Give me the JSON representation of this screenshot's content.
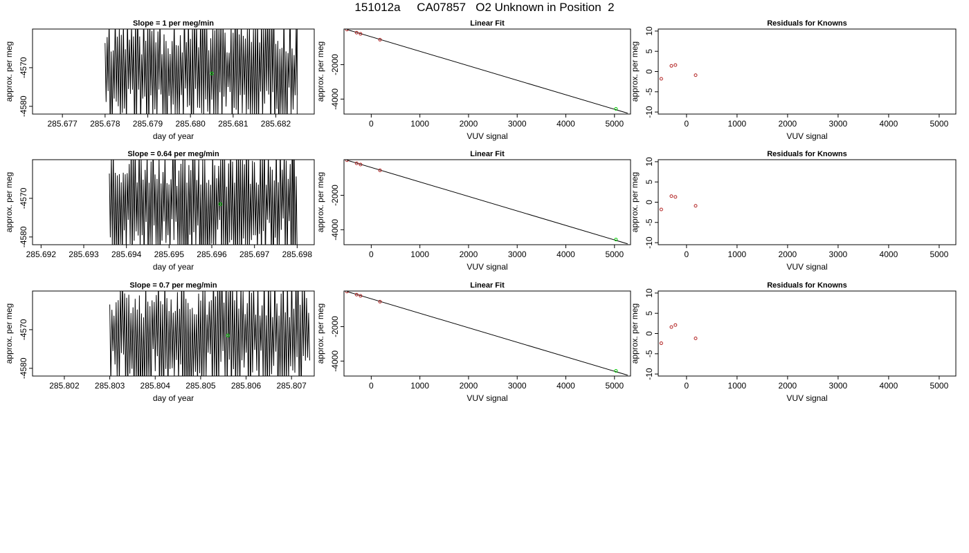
{
  "title": "151012a     CA07857   O2 Unknown in Position  2",
  "colors": {
    "known_point": "#b22222",
    "unknown_point": "#00c800",
    "line": "#000000"
  },
  "chart_data": [
    {
      "type": "line",
      "panel_type": "drift",
      "title": "Slope =  1  per meg/min",
      "xlabel": "day of year",
      "ylabel": "approx. per meg",
      "xlim": [
        285.6763,
        285.6829
      ],
      "ylim": [
        -4582,
        -4560
      ],
      "xticks": [
        "285.677",
        "285.678",
        "285.679",
        "285.680",
        "285.681",
        "285.682"
      ],
      "yticks": [
        "-4570",
        "-4580"
      ],
      "ytick_values": [
        -4570,
        -4580
      ],
      "trace_x_range": [
        285.678,
        285.6825
      ],
      "trace_points": 190,
      "trace_seed": 11,
      "gap_x": 285.6825,
      "marker": {
        "x": 285.6805,
        "y": -4571.5
      }
    },
    {
      "type": "line",
      "panel_type": "linear_fit",
      "title": "Linear Fit",
      "xlabel": "VUV signal",
      "ylabel": "approx. per meg",
      "xlim": [
        -560,
        5330
      ],
      "ylim": [
        -4870,
        70
      ],
      "xticks": [
        "0",
        "1000",
        "2000",
        "3000",
        "4000",
        "5000"
      ],
      "yticks": [
        "-2000",
        "-4000"
      ],
      "ytick_values": [
        -2000,
        -4000
      ],
      "fit_line": {
        "x": [
          -500,
          5270
        ],
        "y": [
          40,
          -4820
        ]
      },
      "knowns": [
        {
          "x": -500,
          "y": 40
        },
        {
          "x": -300,
          "y": -140
        },
        {
          "x": -220,
          "y": -210
        },
        {
          "x": 180,
          "y": -550
        }
      ],
      "unknown": {
        "x": 5030,
        "y": -4570
      }
    },
    {
      "type": "scatter",
      "panel_type": "residuals",
      "title": "Residuals for Knowns",
      "xlabel": "VUV signal",
      "ylabel": "approx. per meg",
      "xlim": [
        -560,
        5330
      ],
      "ylim": [
        -10.5,
        10.5
      ],
      "xticks": [
        "0",
        "1000",
        "2000",
        "3000",
        "4000",
        "5000"
      ],
      "yticks": [
        "10",
        "5",
        "0",
        "-5",
        "-10"
      ],
      "ytick_values": [
        10,
        5,
        0,
        -5,
        -10
      ],
      "points": [
        {
          "x": -500,
          "y": -1.8
        },
        {
          "x": -300,
          "y": 1.4
        },
        {
          "x": -220,
          "y": 1.6
        },
        {
          "x": 180,
          "y": -0.9
        }
      ]
    },
    {
      "type": "line",
      "panel_type": "drift",
      "title": "Slope =  0.64  per meg/min",
      "xlabel": "day of year",
      "ylabel": "approx. per meg",
      "xlim": [
        285.6918,
        285.6984
      ],
      "ylim": [
        -4582,
        -4560
      ],
      "xticks": [
        "285.692",
        "285.693",
        "285.694",
        "285.695",
        "285.696",
        "285.697",
        "285.698"
      ],
      "yticks": [
        "-4570",
        "-4580"
      ],
      "ytick_values": [
        -4570,
        -4580
      ],
      "trace_x_range": [
        285.6936,
        285.698
      ],
      "trace_points": 190,
      "trace_seed": 23,
      "gap_x": 285.6979,
      "marker": {
        "x": 285.6962,
        "y": -4571.5
      }
    },
    {
      "type": "line",
      "panel_type": "linear_fit",
      "title": "Linear Fit",
      "xlabel": "VUV signal",
      "ylabel": "approx. per meg",
      "xlim": [
        -560,
        5330
      ],
      "ylim": [
        -4870,
        70
      ],
      "xticks": [
        "0",
        "1000",
        "2000",
        "3000",
        "4000",
        "5000"
      ],
      "yticks": [
        "-2000",
        "-4000"
      ],
      "ytick_values": [
        -2000,
        -4000
      ],
      "fit_line": {
        "x": [
          -500,
          5270
        ],
        "y": [
          40,
          -4820
        ]
      },
      "knowns": [
        {
          "x": -500,
          "y": 40
        },
        {
          "x": -300,
          "y": -140
        },
        {
          "x": -220,
          "y": -210
        },
        {
          "x": 180,
          "y": -550
        }
      ],
      "unknown": {
        "x": 5030,
        "y": -4570
      }
    },
    {
      "type": "scatter",
      "panel_type": "residuals",
      "title": "Residuals for Knowns",
      "xlabel": "VUV signal",
      "ylabel": "approx. per meg",
      "xlim": [
        -560,
        5330
      ],
      "ylim": [
        -10.5,
        10.5
      ],
      "xticks": [
        "0",
        "1000",
        "2000",
        "3000",
        "4000",
        "5000"
      ],
      "yticks": [
        "10",
        "5",
        "0",
        "-5",
        "-10"
      ],
      "ytick_values": [
        10,
        5,
        0,
        -5,
        -10
      ],
      "points": [
        {
          "x": -500,
          "y": -1.8
        },
        {
          "x": -300,
          "y": 1.5
        },
        {
          "x": -220,
          "y": 1.3
        },
        {
          "x": 180,
          "y": -0.9
        }
      ]
    },
    {
      "type": "line",
      "panel_type": "drift",
      "title": "Slope =  0.7  per meg/min",
      "xlabel": "day of year",
      "ylabel": "approx. per meg",
      "xlim": [
        285.8013,
        285.8075
      ],
      "ylim": [
        -4582,
        -4560
      ],
      "xticks": [
        "285.802",
        "285.803",
        "285.804",
        "285.805",
        "285.806",
        "285.807"
      ],
      "yticks": [
        "-4570",
        "-4580"
      ],
      "ytick_values": [
        -4570,
        -4580
      ],
      "trace_x_range": [
        285.803,
        285.8074
      ],
      "trace_points": 190,
      "trace_seed": 37,
      "gap_x": null,
      "marker": {
        "x": 285.8056,
        "y": -4571.5
      }
    },
    {
      "type": "line",
      "panel_type": "linear_fit",
      "title": "Linear Fit",
      "xlabel": "VUV signal",
      "ylabel": "approx. per meg",
      "xlim": [
        -560,
        5330
      ],
      "ylim": [
        -4870,
        70
      ],
      "xticks": [
        "0",
        "1000",
        "2000",
        "3000",
        "4000",
        "5000"
      ],
      "yticks": [
        "-2000",
        "-4000"
      ],
      "ytick_values": [
        -2000,
        -4000
      ],
      "fit_line": {
        "x": [
          -500,
          5270
        ],
        "y": [
          40,
          -4820
        ]
      },
      "knowns": [
        {
          "x": -500,
          "y": 40
        },
        {
          "x": -300,
          "y": -140
        },
        {
          "x": -220,
          "y": -210
        },
        {
          "x": 180,
          "y": -550
        }
      ],
      "unknown": {
        "x": 5030,
        "y": -4570
      }
    },
    {
      "type": "scatter",
      "panel_type": "residuals",
      "title": "Residuals for Knowns",
      "xlabel": "VUV signal",
      "ylabel": "approx. per meg",
      "xlim": [
        -560,
        5330
      ],
      "ylim": [
        -10.5,
        10.5
      ],
      "xticks": [
        "0",
        "1000",
        "2000",
        "3000",
        "4000",
        "5000"
      ],
      "yticks": [
        "10",
        "5",
        "0",
        "-5",
        "-10"
      ],
      "ytick_values": [
        10,
        5,
        0,
        -5,
        -10
      ],
      "points": [
        {
          "x": -500,
          "y": -2.4
        },
        {
          "x": -300,
          "y": 1.6
        },
        {
          "x": -220,
          "y": 2.1
        },
        {
          "x": 180,
          "y": -1.2
        }
      ]
    }
  ]
}
